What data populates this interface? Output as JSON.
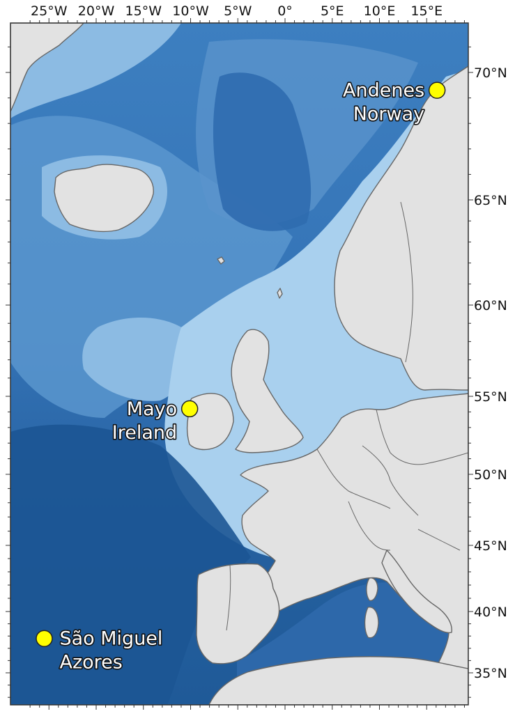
{
  "map": {
    "lon_labels": [
      "25°W",
      "20°W",
      "15°W",
      "10°W",
      "5°W",
      "0°",
      "5°E",
      "10°E",
      "15°E"
    ],
    "lat_labels": [
      "70°N",
      "65°N",
      "60°N",
      "55°N",
      "50°N",
      "45°N",
      "40°N",
      "35°N"
    ],
    "colors": {
      "ocean_deep": "#1f5c9c",
      "ocean_mid": "#3f80c0",
      "ocean_light": "#7fb2df",
      "shelf": "#a9d0ee",
      "land": "#e2e2e2",
      "border": "#666666",
      "marker": "#ffff00"
    },
    "sites": [
      {
        "line1": "Andenes",
        "line2": "Norway",
        "lon": 16.1,
        "lat": 69.3
      },
      {
        "line1": "Mayo",
        "line2": "Ireland",
        "lon": -10.1,
        "lat": 54.2
      },
      {
        "line1": "São Miguel",
        "line2": "Azores",
        "lon": -25.5,
        "lat": 37.8
      }
    ]
  }
}
